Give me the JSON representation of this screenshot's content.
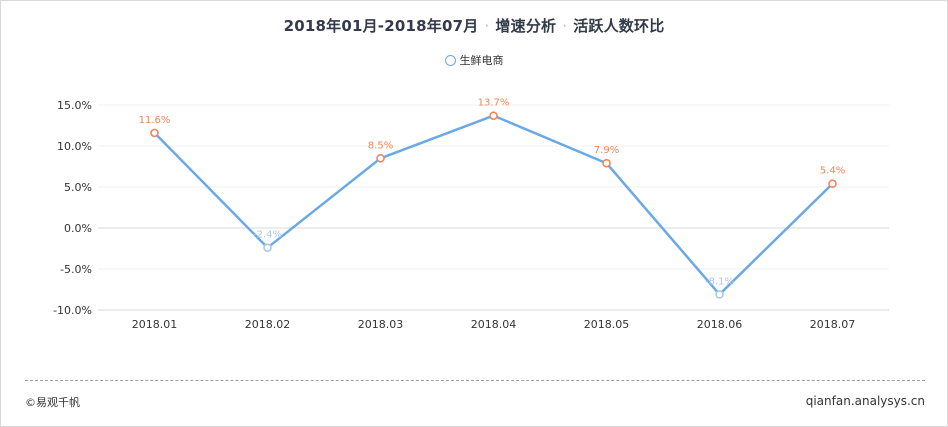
{
  "title": {
    "period": "2018年01月-2018年07月",
    "section": "增速分析",
    "metric": "活跃人数环比"
  },
  "legend": {
    "label": "生鲜电商"
  },
  "footer": {
    "source": "©易观千帆",
    "site": "qianfan.analysys.cn"
  },
  "colors": {
    "line": "#6aa9e6",
    "positive_label": "#f0875a",
    "negative_label": "#a9c9ea",
    "axis_text": "#333333",
    "grid": "#f0f0f0"
  },
  "chart_data": {
    "type": "line",
    "categories": [
      "2018.01",
      "2018.02",
      "2018.03",
      "2018.04",
      "2018.05",
      "2018.06",
      "2018.07"
    ],
    "series": [
      {
        "name": "生鲜电商",
        "values": [
          11.6,
          -2.4,
          8.5,
          13.7,
          7.9,
          -8.1,
          5.4
        ],
        "labels": [
          "11.6%",
          "-2.4%",
          "8.5%",
          "13.7%",
          "7.9%",
          "-8.1%",
          "5.4%"
        ]
      }
    ],
    "y_ticks": [
      "15.0%",
      "10.0%",
      "5.0%",
      "0.0%",
      "-5.0%",
      "-10.0%"
    ],
    "ylim": [
      -10,
      15
    ],
    "ylabel": "",
    "xlabel": "",
    "grid": true,
    "legend_position": "top-center"
  }
}
